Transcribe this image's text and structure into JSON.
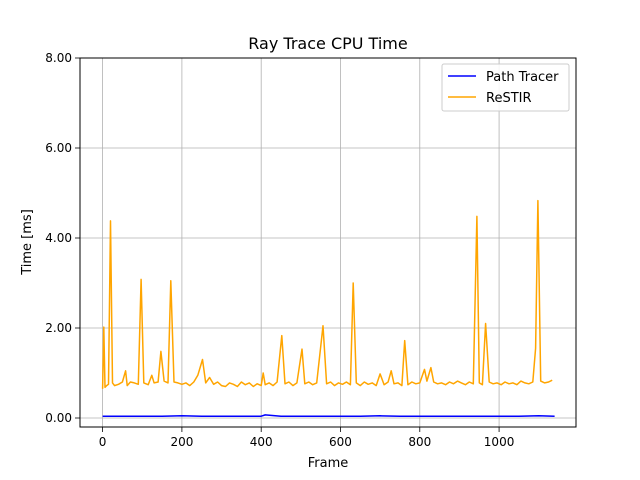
{
  "chart_data": {
    "type": "line",
    "title": "Ray Trace CPU Time",
    "xlabel": "Frame",
    "ylabel": "Time [ms]",
    "xlim": [
      -57,
      1194
    ],
    "ylim": [
      -0.2,
      8.0
    ],
    "xticks": [
      0,
      200,
      400,
      600,
      800,
      1000
    ],
    "xtick_labels": [
      "0",
      "200",
      "400",
      "600",
      "800",
      "1000"
    ],
    "yticks": [
      0,
      2,
      4,
      6,
      8
    ],
    "ytick_labels": [
      "0.00",
      "2.00",
      "4.00",
      "6.00",
      "8.00"
    ],
    "grid": true,
    "legend": "top-right",
    "series": [
      {
        "name": "Path Tracer",
        "color": "#0000ff",
        "x": [
          0,
          50,
          100,
          150,
          200,
          250,
          300,
          350,
          400,
          410,
          450,
          500,
          550,
          600,
          650,
          700,
          750,
          800,
          850,
          900,
          950,
          1000,
          1050,
          1100,
          1140
        ],
        "values": [
          0.04,
          0.04,
          0.04,
          0.04,
          0.05,
          0.04,
          0.04,
          0.04,
          0.04,
          0.07,
          0.04,
          0.04,
          0.04,
          0.04,
          0.04,
          0.05,
          0.04,
          0.04,
          0.04,
          0.04,
          0.04,
          0.04,
          0.04,
          0.05,
          0.04
        ]
      },
      {
        "name": "ReSTIR",
        "color": "#ffa500",
        "x": [
          0,
          3,
          6,
          10,
          15,
          20,
          25,
          30,
          40,
          50,
          58,
          62,
          70,
          80,
          90,
          97,
          104,
          115,
          124,
          130,
          140,
          147,
          155,
          165,
          172,
          180,
          190,
          200,
          210,
          220,
          230,
          240,
          252,
          260,
          270,
          280,
          290,
          300,
          310,
          320,
          330,
          340,
          350,
          360,
          370,
          380,
          390,
          400,
          405,
          410,
          420,
          430,
          440,
          452,
          460,
          470,
          480,
          490,
          503,
          510,
          520,
          530,
          540,
          556,
          565,
          575,
          585,
          595,
          605,
          615,
          625,
          632,
          640,
          650,
          660,
          670,
          680,
          690,
          700,
          710,
          720,
          728,
          735,
          745,
          755,
          762,
          770,
          780,
          790,
          800,
          812,
          818,
          828,
          835,
          845,
          855,
          865,
          875,
          885,
          895,
          905,
          915,
          925,
          935,
          944,
          950,
          958,
          966,
          975,
          985,
          995,
          1005,
          1015,
          1025,
          1035,
          1045,
          1055,
          1065,
          1075,
          1085,
          1092,
          1098,
          1105,
          1115,
          1125,
          1134
        ],
        "values": [
          0.65,
          2.02,
          0.68,
          0.72,
          0.75,
          4.38,
          0.78,
          0.72,
          0.75,
          0.8,
          1.05,
          0.72,
          0.8,
          0.78,
          0.75,
          3.08,
          0.78,
          0.74,
          0.95,
          0.78,
          0.8,
          1.48,
          0.82,
          0.78,
          3.05,
          0.8,
          0.78,
          0.75,
          0.78,
          0.72,
          0.8,
          0.95,
          1.3,
          0.78,
          0.9,
          0.75,
          0.8,
          0.72,
          0.7,
          0.78,
          0.75,
          0.7,
          0.8,
          0.74,
          0.78,
          0.7,
          0.76,
          0.72,
          1.0,
          0.74,
          0.78,
          0.72,
          0.8,
          1.83,
          0.76,
          0.8,
          0.72,
          0.78,
          1.53,
          0.76,
          0.8,
          0.74,
          0.78,
          2.05,
          0.76,
          0.8,
          0.72,
          0.78,
          0.75,
          0.8,
          0.74,
          3.0,
          0.78,
          0.72,
          0.8,
          0.75,
          0.78,
          0.72,
          0.98,
          0.74,
          0.8,
          1.05,
          0.76,
          0.78,
          0.72,
          1.72,
          0.74,
          0.8,
          0.76,
          0.78,
          1.08,
          0.82,
          1.12,
          0.8,
          0.76,
          0.78,
          0.74,
          0.8,
          0.76,
          0.82,
          0.78,
          0.74,
          0.8,
          0.76,
          4.48,
          0.78,
          0.74,
          2.1,
          0.8,
          0.76,
          0.78,
          0.74,
          0.8,
          0.76,
          0.78,
          0.74,
          0.82,
          0.78,
          0.76,
          0.8,
          1.55,
          4.83,
          0.82,
          0.78,
          0.8,
          0.84
        ]
      }
    ]
  }
}
